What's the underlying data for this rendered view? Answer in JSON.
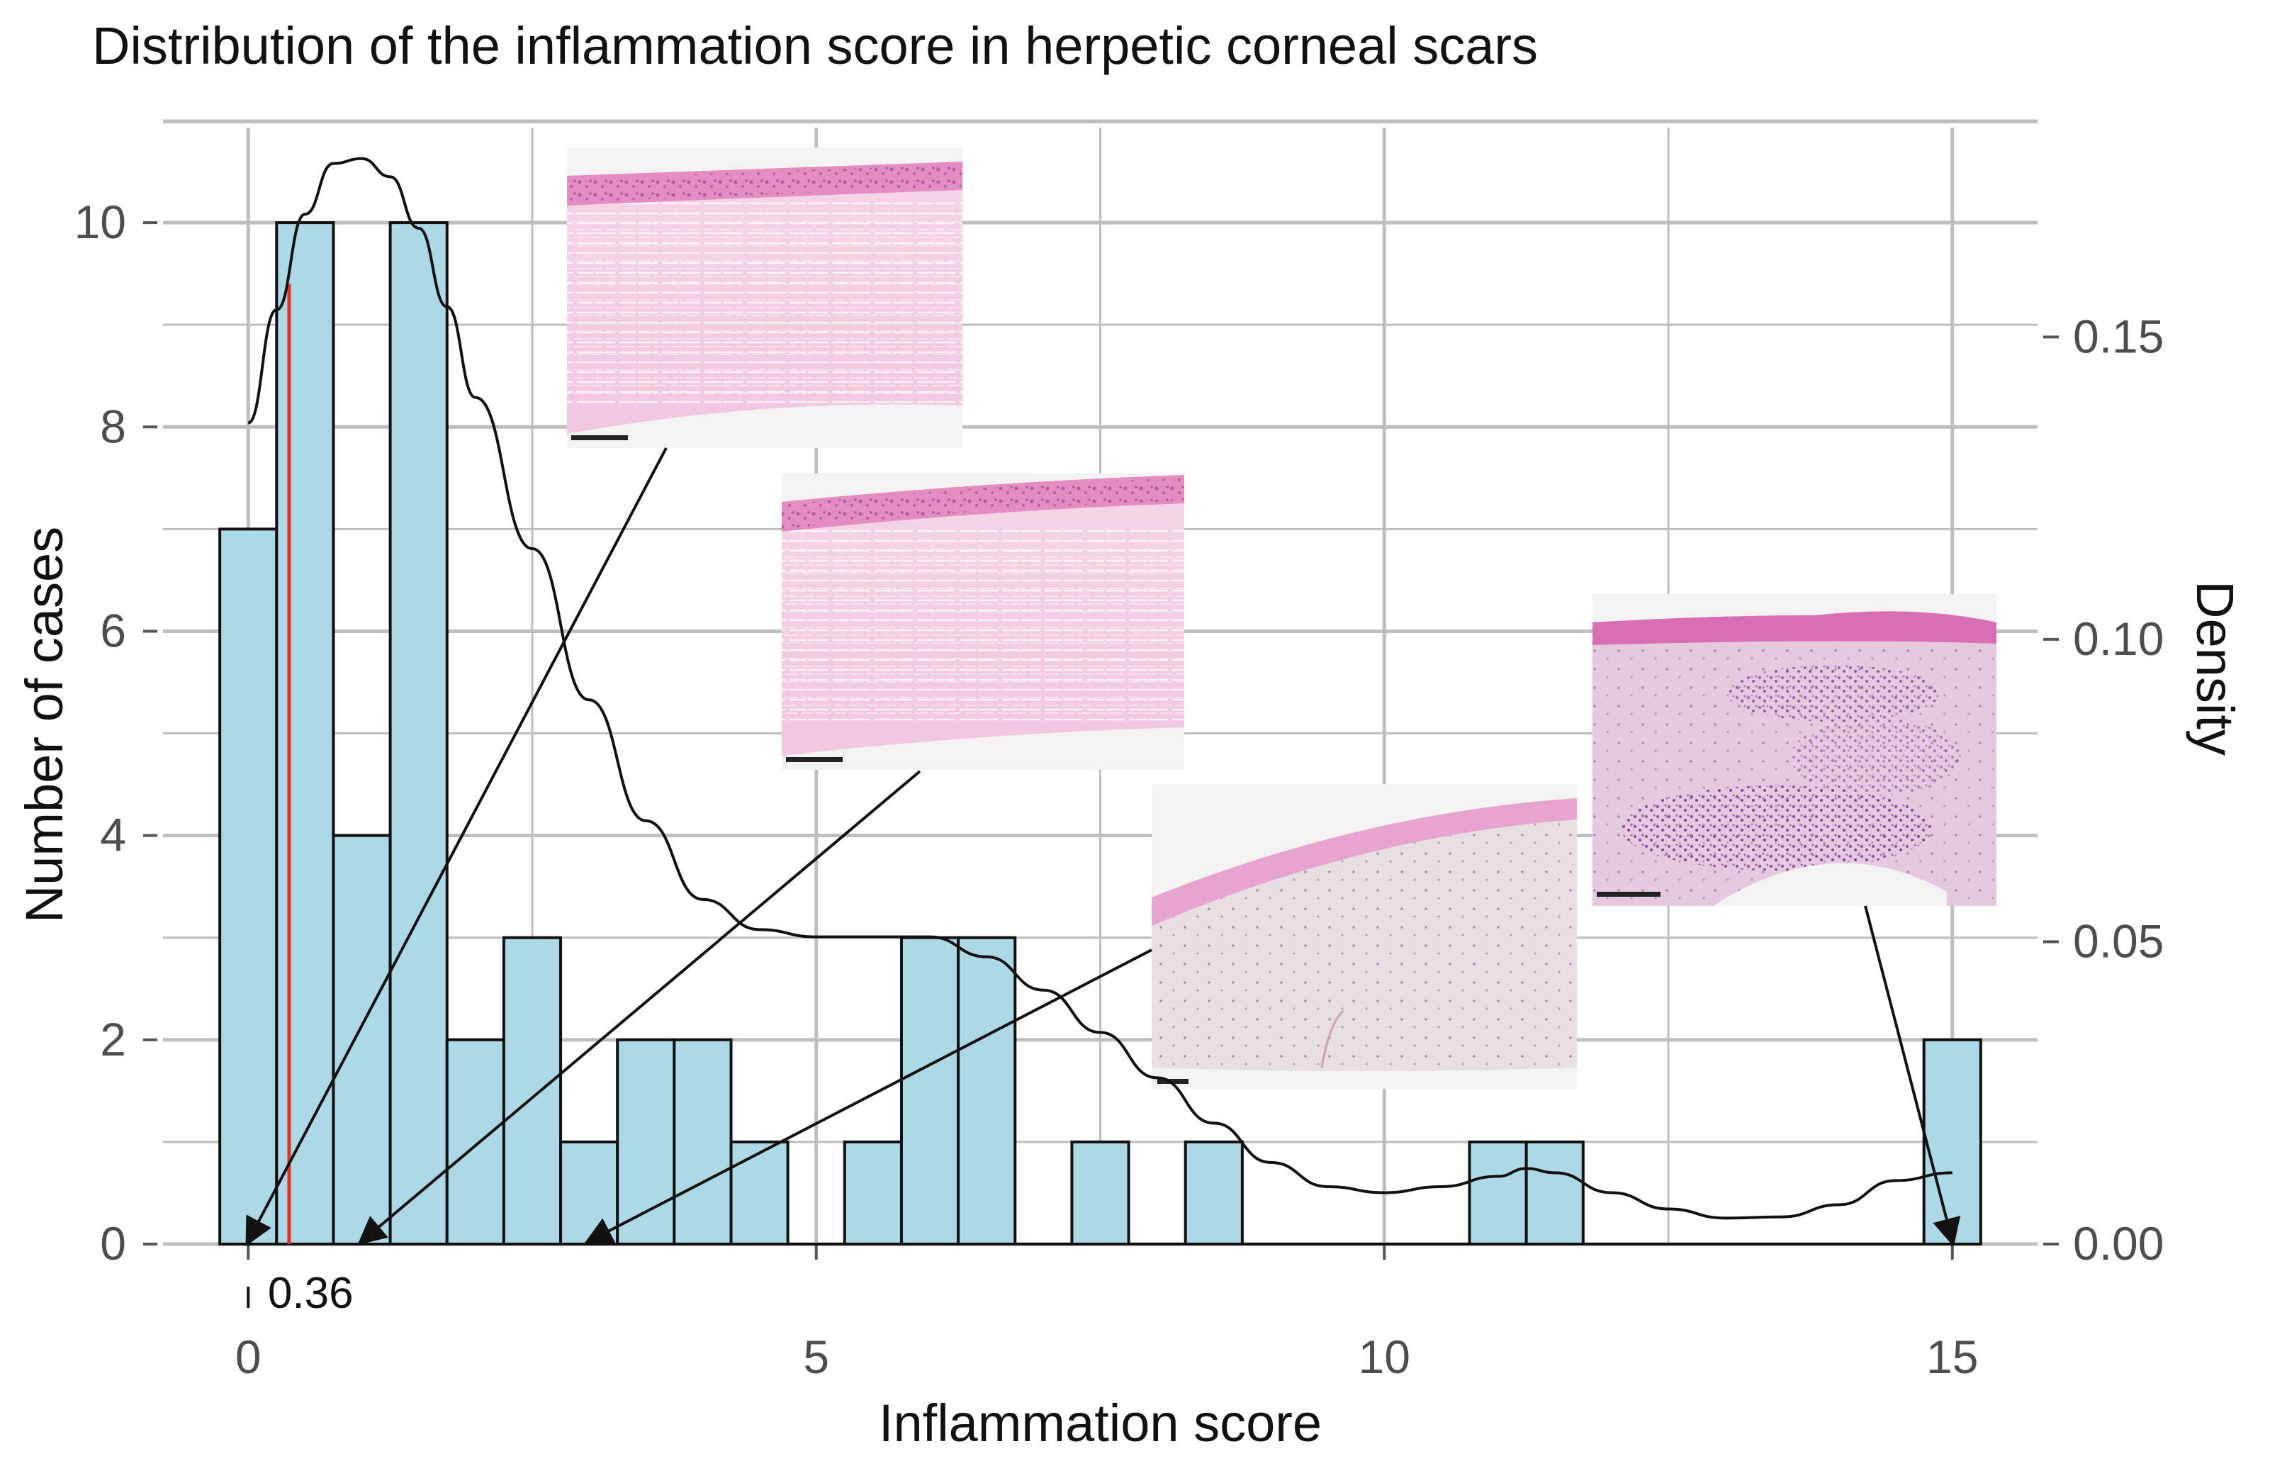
{
  "chart_data": {
    "type": "bar",
    "title": "Distribution of the inflammation score in herpetic corneal scars",
    "xlabel": "Inflammation score",
    "ylabel": "Number of cases",
    "y2label": "Density",
    "xlim": [
      -0.75,
      15.75
    ],
    "ylim": [
      0,
      11
    ],
    "y2lim": [
      0,
      0.1858
    ],
    "x_ticks": [
      0,
      5,
      10,
      15
    ],
    "y_ticks": [
      0,
      2,
      4,
      6,
      8,
      10
    ],
    "y2_ticks": [
      "0.00",
      "0.05",
      "0.10",
      "0.15"
    ],
    "y2_tick_values": [
      0,
      0.05,
      0.1,
      0.15
    ],
    "grid": true,
    "bin_width": 0.5,
    "bars": [
      {
        "x": 0.0,
        "count": 7
      },
      {
        "x": 0.5,
        "count": 10
      },
      {
        "x": 1.0,
        "count": 4
      },
      {
        "x": 1.5,
        "count": 10
      },
      {
        "x": 2.0,
        "count": 2
      },
      {
        "x": 2.5,
        "count": 3
      },
      {
        "x": 3.0,
        "count": 1
      },
      {
        "x": 3.5,
        "count": 2
      },
      {
        "x": 4.0,
        "count": 2
      },
      {
        "x": 4.5,
        "count": 1
      },
      {
        "x": 5.5,
        "count": 1
      },
      {
        "x": 6.0,
        "count": 3
      },
      {
        "x": 6.5,
        "count": 3
      },
      {
        "x": 7.5,
        "count": 1
      },
      {
        "x": 8.5,
        "count": 1
      },
      {
        "x": 11.0,
        "count": 1
      },
      {
        "x": 11.5,
        "count": 1
      },
      {
        "x": 15.0,
        "count": 2
      }
    ],
    "density_curve": [
      [
        0.0,
        0.1358
      ],
      [
        0.25,
        0.1545
      ],
      [
        0.5,
        0.1703
      ],
      [
        0.75,
        0.1787
      ],
      [
        1.0,
        0.1795
      ],
      [
        1.25,
        0.1765
      ],
      [
        1.5,
        0.168
      ],
      [
        1.75,
        0.155
      ],
      [
        2.0,
        0.14
      ],
      [
        2.5,
        0.115
      ],
      [
        3.0,
        0.09
      ],
      [
        3.5,
        0.07
      ],
      [
        4.0,
        0.057
      ],
      [
        4.5,
        0.052
      ],
      [
        5.0,
        0.0508
      ],
      [
        5.5,
        0.0508
      ],
      [
        6.0,
        0.0508
      ],
      [
        6.5,
        0.0475
      ],
      [
        7.0,
        0.042
      ],
      [
        7.5,
        0.035
      ],
      [
        8.0,
        0.0275
      ],
      [
        8.5,
        0.02
      ],
      [
        9.0,
        0.0135
      ],
      [
        9.5,
        0.0095
      ],
      [
        10.0,
        0.0085
      ],
      [
        10.5,
        0.0095
      ],
      [
        11.0,
        0.0112
      ],
      [
        11.25,
        0.0125
      ],
      [
        11.5,
        0.0118
      ],
      [
        12.0,
        0.0085
      ],
      [
        12.5,
        0.0058
      ],
      [
        13.0,
        0.0043
      ],
      [
        13.5,
        0.0045
      ],
      [
        14.0,
        0.0065
      ],
      [
        14.5,
        0.0105
      ],
      [
        15.0,
        0.0118
      ]
    ],
    "reference_line": {
      "x": 0.36,
      "label": "0.36",
      "color": "#e8302a",
      "top_count": 9.4
    },
    "bar_color": "#add8e6",
    "grid_color": "#bebebe",
    "annotations": [
      {
        "name": "micrograph-score-0",
        "arrow_to_x": 0.0
      },
      {
        "name": "micrograph-score-1",
        "arrow_to_x": 1.0
      },
      {
        "name": "micrograph-score-3",
        "arrow_to_x": 3.0
      },
      {
        "name": "micrograph-score-15",
        "arrow_to_x": 15.0
      }
    ]
  }
}
